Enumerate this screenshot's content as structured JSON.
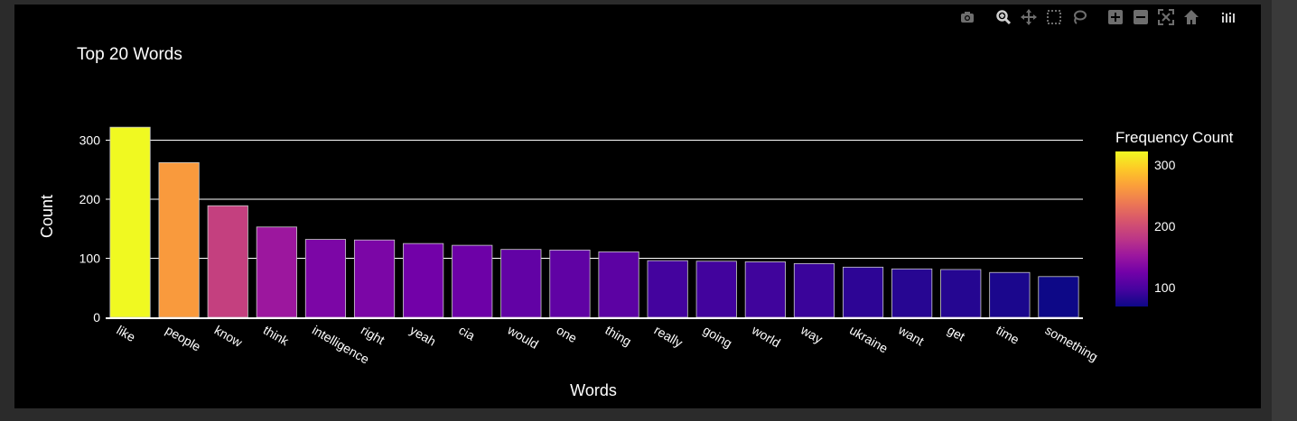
{
  "modebar": {
    "buttons": [
      {
        "name": "camera-icon",
        "label": "Download plot as a png"
      },
      {
        "name": "zoom-icon",
        "label": "Zoom",
        "active": true
      },
      {
        "name": "pan-icon",
        "label": "Pan"
      },
      {
        "name": "box-select-icon",
        "label": "Box Select"
      },
      {
        "name": "lasso-select-icon",
        "label": "Lasso Select"
      },
      {
        "name": "zoom-in-icon",
        "label": "Zoom in"
      },
      {
        "name": "zoom-out-icon",
        "label": "Zoom out"
      },
      {
        "name": "autoscale-icon",
        "label": "Autoscale"
      },
      {
        "name": "reset-axes-icon",
        "label": "Reset axes"
      },
      {
        "name": "plotly-logo-icon",
        "label": "Produced with Plotly"
      }
    ]
  },
  "chart_data": {
    "type": "bar",
    "title": "Top 20 Words",
    "xlabel": "Words",
    "ylabel": "Count",
    "categories": [
      "like",
      "people",
      "know",
      "think",
      "intelligence",
      "right",
      "yeah",
      "cia",
      "would",
      "one",
      "thing",
      "really",
      "going",
      "world",
      "way",
      "ukraine",
      "want",
      "get",
      "time",
      "something"
    ],
    "values": [
      322,
      262,
      189,
      153,
      132,
      131,
      125,
      122,
      115,
      114,
      111,
      96,
      95,
      94,
      91,
      85,
      82,
      81,
      76,
      69
    ],
    "yticks": [
      0,
      100,
      200,
      300
    ],
    "ylim": [
      0,
      339
    ],
    "grid": true,
    "colorbar": {
      "title": "Frequency Count",
      "ticks": [
        100,
        200,
        300
      ],
      "range": [
        69,
        322
      ],
      "colorscale": "plasma"
    },
    "colors": {
      "background": "#000000",
      "grid": "#ffffff",
      "bar_outline": "#cccccc"
    }
  }
}
